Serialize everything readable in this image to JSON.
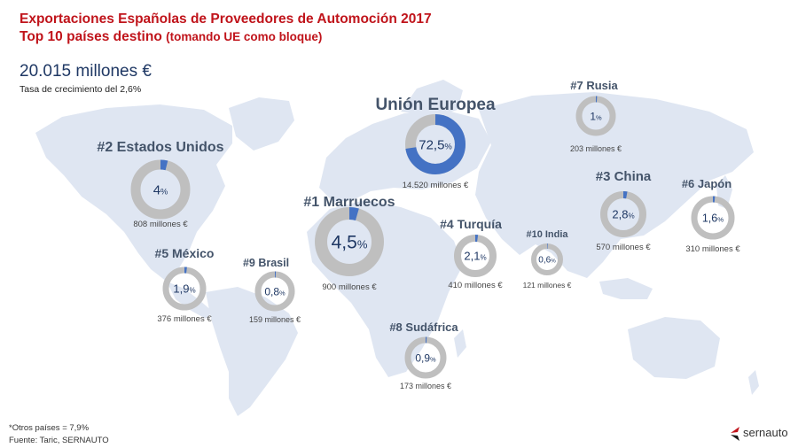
{
  "header": {
    "title_line1": "Exportaciones Españolas de Proveedores de Automoción 2017",
    "title_line2": "Top 10 países destino",
    "title_note": "(tomando UE como bloque)",
    "total": "20.015 millones €",
    "growth": "Tasa de crecimiento del 2,6%"
  },
  "footer": {
    "others": "*Otros países = 7,9%",
    "source": "Fuente: Taric, SERNAUTO"
  },
  "logo": {
    "text": "sernauto",
    "color": "#c0141b"
  },
  "colors": {
    "accent": "#4472c4",
    "track": "#bfbfbf",
    "title": "#c0141b",
    "label": "#44546a",
    "map": "#dfe6f2"
  },
  "chart_data": {
    "type": "pie",
    "subtype": "donut-map",
    "title": "Exportaciones Españolas de Proveedores de Automoción 2017",
    "unit": "%",
    "series": [
      {
        "name": "Unión Europea",
        "label": "Unión Europea",
        "value": 72.5,
        "value_label": "72,5",
        "amount": "14.520 millones €"
      },
      {
        "name": "Marruecos",
        "label": "#1 Marruecos",
        "value": 4.5,
        "value_label": "4,5",
        "amount": "900 millones €"
      },
      {
        "name": "Estados Unidos",
        "label": "#2 Estados Unidos",
        "value": 4.0,
        "value_label": "4",
        "amount": "808 millones €"
      },
      {
        "name": "China",
        "label": "#3 China",
        "value": 2.8,
        "value_label": "2,8",
        "amount": "570 millones €"
      },
      {
        "name": "Turquía",
        "label": "#4 Turquía",
        "value": 2.1,
        "value_label": "2,1",
        "amount": "410 millones €"
      },
      {
        "name": "México",
        "label": "#5 México",
        "value": 1.9,
        "value_label": "1,9",
        "amount": "376 millones €"
      },
      {
        "name": "Japón",
        "label": "#6 Japón",
        "value": 1.6,
        "value_label": "1,6",
        "amount": "310 millones €"
      },
      {
        "name": "Rusia",
        "label": "#7 Rusia",
        "value": 1.0,
        "value_label": "1",
        "amount": "203 millones €"
      },
      {
        "name": "Sudáfrica",
        "label": "#8 Sudáfrica",
        "value": 0.9,
        "value_label": "0,9",
        "amount": "173 millones €"
      },
      {
        "name": "Brasil",
        "label": "#9 Brasil",
        "value": 0.8,
        "value_label": "0,8",
        "amount": "159 millones €"
      },
      {
        "name": "India",
        "label": "#10 India",
        "value": 0.6,
        "value_label": "0,6",
        "amount": "121 millones €"
      }
    ]
  }
}
